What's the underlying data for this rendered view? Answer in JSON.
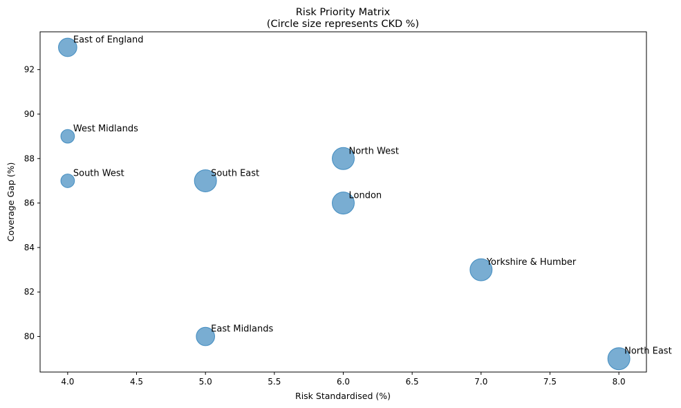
{
  "chart_data": {
    "type": "scatter",
    "title": "Risk Priority Matrix",
    "subtitle": "(Circle size represents CKD %)",
    "xlabel": "Risk Standardised (%)",
    "ylabel": "Coverage Gap (%)",
    "xlim": [
      3.8,
      8.2
    ],
    "ylim": [
      78.4,
      93.7
    ],
    "xticks": [
      4.0,
      4.5,
      5.0,
      5.5,
      6.0,
      6.5,
      7.0,
      7.5,
      8.0
    ],
    "xtick_labels": [
      "4.0",
      "4.5",
      "5.0",
      "5.5",
      "6.0",
      "6.5",
      "7.0",
      "7.5",
      "8.0"
    ],
    "yticks": [
      80,
      82,
      84,
      86,
      88,
      90,
      92
    ],
    "ytick_labels": [
      "80",
      "82",
      "84",
      "86",
      "88",
      "90",
      "92"
    ],
    "grid": false,
    "marker_color": "#1f77b4",
    "marker_alpha": 0.6,
    "points": [
      {
        "label": "East of England",
        "x": 4,
        "y": 93,
        "size": 2
      },
      {
        "label": "West Midlands",
        "x": 4,
        "y": 89,
        "size": 1
      },
      {
        "label": "South West",
        "x": 4,
        "y": 87,
        "size": 1
      },
      {
        "label": "South East",
        "x": 5,
        "y": 87,
        "size": 3
      },
      {
        "label": "East Midlands",
        "x": 5,
        "y": 80,
        "size": 2
      },
      {
        "label": "North West",
        "x": 6,
        "y": 88,
        "size": 3
      },
      {
        "label": "London",
        "x": 6,
        "y": 86,
        "size": 3
      },
      {
        "label": "Yorkshire & Humber",
        "x": 7,
        "y": 83,
        "size": 3
      },
      {
        "label": "North East",
        "x": 8,
        "y": 79,
        "size": 3
      }
    ]
  }
}
